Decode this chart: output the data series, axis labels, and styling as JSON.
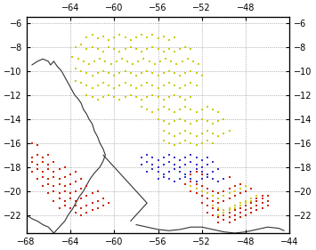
{
  "xlim": [
    -68,
    -44
  ],
  "ylim": [
    -23.5,
    -5.5
  ],
  "xticks_bottom": [
    -68,
    -64,
    -60,
    -56,
    -52,
    -48,
    -44
  ],
  "xticks_top": [
    -64,
    -60,
    -56,
    -52,
    -48
  ],
  "yticks": [
    -6,
    -8,
    -10,
    -12,
    -14,
    -16,
    -18,
    -20,
    -22
  ],
  "figsize": [
    3.55,
    2.81
  ],
  "dpi": 100,
  "yellow_dots": [
    [
      -62.5,
      -7.2
    ],
    [
      -62.0,
      -7.0
    ],
    [
      -61.5,
      -7.3
    ],
    [
      -61.0,
      -7.1
    ],
    [
      -60.5,
      -7.4
    ],
    [
      -60.0,
      -7.2
    ],
    [
      -59.5,
      -7.0
    ],
    [
      -59.0,
      -7.2
    ],
    [
      -58.5,
      -7.4
    ],
    [
      -58.0,
      -7.2
    ],
    [
      -57.5,
      -7.0
    ],
    [
      -57.0,
      -7.2
    ],
    [
      -56.5,
      -7.0
    ],
    [
      -56.0,
      -7.3
    ],
    [
      -55.5,
      -7.1
    ],
    [
      -55.0,
      -7.4
    ],
    [
      -54.5,
      -7.2
    ],
    [
      -63.5,
      -8.0
    ],
    [
      -63.0,
      -7.8
    ],
    [
      -62.5,
      -8.2
    ],
    [
      -62.0,
      -8.0
    ],
    [
      -61.5,
      -8.2
    ],
    [
      -61.0,
      -8.4
    ],
    [
      -60.5,
      -8.0
    ],
    [
      -60.0,
      -8.2
    ],
    [
      -59.5,
      -8.4
    ],
    [
      -59.0,
      -8.2
    ],
    [
      -58.5,
      -8.0
    ],
    [
      -58.0,
      -8.2
    ],
    [
      -57.5,
      -8.4
    ],
    [
      -57.0,
      -8.2
    ],
    [
      -56.5,
      -8.0
    ],
    [
      -56.0,
      -8.2
    ],
    [
      -55.5,
      -8.4
    ],
    [
      -55.0,
      -8.2
    ],
    [
      -54.5,
      -8.4
    ],
    [
      -54.0,
      -8.2
    ],
    [
      -53.5,
      -8.0
    ],
    [
      -53.0,
      -8.2
    ],
    [
      -63.8,
      -8.8
    ],
    [
      -63.3,
      -9.0
    ],
    [
      -62.8,
      -9.2
    ],
    [
      -62.3,
      -9.4
    ],
    [
      -61.8,
      -9.2
    ],
    [
      -61.3,
      -9.0
    ],
    [
      -60.8,
      -9.2
    ],
    [
      -60.3,
      -9.4
    ],
    [
      -59.8,
      -9.2
    ],
    [
      -59.3,
      -9.0
    ],
    [
      -58.8,
      -9.2
    ],
    [
      -58.3,
      -9.4
    ],
    [
      -57.8,
      -9.2
    ],
    [
      -57.3,
      -9.0
    ],
    [
      -56.8,
      -9.2
    ],
    [
      -56.3,
      -9.4
    ],
    [
      -55.8,
      -9.2
    ],
    [
      -55.3,
      -9.0
    ],
    [
      -54.8,
      -9.2
    ],
    [
      -54.3,
      -9.4
    ],
    [
      -53.8,
      -9.2
    ],
    [
      -53.3,
      -9.0
    ],
    [
      -52.8,
      -9.2
    ],
    [
      -52.3,
      -9.4
    ],
    [
      -63.5,
      -9.8
    ],
    [
      -63.0,
      -10.0
    ],
    [
      -62.5,
      -10.2
    ],
    [
      -62.0,
      -10.4
    ],
    [
      -61.5,
      -10.2
    ],
    [
      -61.0,
      -10.0
    ],
    [
      -60.5,
      -10.2
    ],
    [
      -60.0,
      -10.4
    ],
    [
      -59.5,
      -10.2
    ],
    [
      -59.0,
      -10.0
    ],
    [
      -58.5,
      -10.2
    ],
    [
      -58.0,
      -10.4
    ],
    [
      -57.5,
      -10.2
    ],
    [
      -57.0,
      -10.0
    ],
    [
      -56.5,
      -10.2
    ],
    [
      -56.0,
      -10.4
    ],
    [
      -55.5,
      -10.2
    ],
    [
      -55.0,
      -10.0
    ],
    [
      -54.5,
      -10.2
    ],
    [
      -54.0,
      -10.4
    ],
    [
      -53.5,
      -10.2
    ],
    [
      -53.0,
      -10.0
    ],
    [
      -52.5,
      -10.2
    ],
    [
      -52.0,
      -10.4
    ],
    [
      -63.5,
      -10.8
    ],
    [
      -63.0,
      -11.0
    ],
    [
      -62.5,
      -11.2
    ],
    [
      -62.0,
      -11.4
    ],
    [
      -61.5,
      -11.2
    ],
    [
      -61.0,
      -11.0
    ],
    [
      -60.5,
      -11.2
    ],
    [
      -60.0,
      -11.4
    ],
    [
      -59.5,
      -11.2
    ],
    [
      -59.0,
      -11.0
    ],
    [
      -58.5,
      -11.2
    ],
    [
      -58.0,
      -11.4
    ],
    [
      -57.5,
      -11.2
    ],
    [
      -57.0,
      -11.0
    ],
    [
      -56.5,
      -11.2
    ],
    [
      -56.0,
      -11.4
    ],
    [
      -55.5,
      -11.2
    ],
    [
      -55.0,
      -11.0
    ],
    [
      -54.5,
      -11.2
    ],
    [
      -54.0,
      -11.4
    ],
    [
      -53.5,
      -11.2
    ],
    [
      -53.0,
      -11.0
    ],
    [
      -52.5,
      -11.2
    ],
    [
      -62.5,
      -12.0
    ],
    [
      -62.0,
      -12.2
    ],
    [
      -61.5,
      -12.4
    ],
    [
      -61.0,
      -12.2
    ],
    [
      -60.5,
      -12.0
    ],
    [
      -60.0,
      -12.2
    ],
    [
      -59.5,
      -12.4
    ],
    [
      -59.0,
      -12.2
    ],
    [
      -58.5,
      -12.0
    ],
    [
      -58.0,
      -12.2
    ],
    [
      -57.5,
      -12.4
    ],
    [
      -57.0,
      -12.2
    ],
    [
      -56.5,
      -12.0
    ],
    [
      -56.0,
      -12.2
    ],
    [
      -55.5,
      -12.4
    ],
    [
      -55.0,
      -12.2
    ],
    [
      -54.5,
      -12.0
    ],
    [
      -54.0,
      -12.2
    ],
    [
      -53.5,
      -12.4
    ],
    [
      -53.0,
      -12.2
    ],
    [
      -57.5,
      -13.0
    ],
    [
      -57.0,
      -13.2
    ],
    [
      -56.5,
      -13.4
    ],
    [
      -56.0,
      -13.2
    ],
    [
      -55.5,
      -13.0
    ],
    [
      -55.0,
      -13.2
    ],
    [
      -54.5,
      -13.4
    ],
    [
      -54.0,
      -13.2
    ],
    [
      -53.5,
      -13.0
    ],
    [
      -53.0,
      -13.2
    ],
    [
      -52.5,
      -13.4
    ],
    [
      -52.0,
      -13.2
    ],
    [
      -51.5,
      -13.0
    ],
    [
      -51.0,
      -13.2
    ],
    [
      -50.5,
      -13.4
    ],
    [
      -56.0,
      -14.0
    ],
    [
      -55.5,
      -14.2
    ],
    [
      -55.0,
      -14.4
    ],
    [
      -54.5,
      -14.2
    ],
    [
      -54.0,
      -14.0
    ],
    [
      -53.5,
      -14.2
    ],
    [
      -53.0,
      -14.4
    ],
    [
      -52.5,
      -14.2
    ],
    [
      -52.0,
      -14.0
    ],
    [
      -51.5,
      -14.2
    ],
    [
      -51.0,
      -14.4
    ],
    [
      -50.5,
      -14.2
    ],
    [
      -50.0,
      -14.0
    ],
    [
      -55.5,
      -15.0
    ],
    [
      -55.0,
      -15.2
    ],
    [
      -54.5,
      -15.4
    ],
    [
      -54.0,
      -15.2
    ],
    [
      -53.5,
      -15.0
    ],
    [
      -53.0,
      -15.2
    ],
    [
      -52.5,
      -15.4
    ],
    [
      -52.0,
      -15.2
    ],
    [
      -51.5,
      -15.0
    ],
    [
      -51.0,
      -15.2
    ],
    [
      -50.5,
      -15.4
    ],
    [
      -50.0,
      -15.2
    ],
    [
      -49.5,
      -15.0
    ],
    [
      -55.5,
      -15.8
    ],
    [
      -55.0,
      -16.0
    ],
    [
      -54.5,
      -16.2
    ],
    [
      -54.0,
      -16.0
    ],
    [
      -53.5,
      -15.8
    ],
    [
      -53.0,
      -16.0
    ],
    [
      -52.5,
      -16.2
    ],
    [
      -52.0,
      -16.0
    ],
    [
      -51.5,
      -15.8
    ],
    [
      -51.0,
      -16.0
    ]
  ],
  "blue_dots": [
    [
      -57.5,
      -17.2
    ],
    [
      -57.0,
      -17.0
    ],
    [
      -56.5,
      -17.2
    ],
    [
      -56.0,
      -17.4
    ],
    [
      -55.5,
      -17.2
    ],
    [
      -55.0,
      -17.0
    ],
    [
      -54.5,
      -17.2
    ],
    [
      -54.0,
      -17.4
    ],
    [
      -53.5,
      -17.2
    ],
    [
      -53.0,
      -17.0
    ],
    [
      -52.5,
      -17.2
    ],
    [
      -52.0,
      -17.4
    ],
    [
      -51.5,
      -17.2
    ],
    [
      -57.5,
      -17.8
    ],
    [
      -57.0,
      -17.6
    ],
    [
      -56.5,
      -17.8
    ],
    [
      -56.0,
      -18.0
    ],
    [
      -55.5,
      -17.8
    ],
    [
      -55.0,
      -17.6
    ],
    [
      -54.5,
      -17.8
    ],
    [
      -54.0,
      -18.0
    ],
    [
      -53.5,
      -17.8
    ],
    [
      -53.0,
      -17.6
    ],
    [
      -52.5,
      -17.8
    ],
    [
      -52.0,
      -18.0
    ],
    [
      -51.5,
      -17.8
    ],
    [
      -51.0,
      -17.6
    ],
    [
      -57.0,
      -18.4
    ],
    [
      -56.5,
      -18.2
    ],
    [
      -56.0,
      -18.4
    ],
    [
      -55.5,
      -18.6
    ],
    [
      -55.0,
      -18.4
    ],
    [
      -54.5,
      -18.2
    ],
    [
      -54.0,
      -18.4
    ],
    [
      -53.5,
      -18.6
    ],
    [
      -53.0,
      -18.4
    ],
    [
      -52.5,
      -18.2
    ],
    [
      -52.0,
      -18.4
    ],
    [
      -51.5,
      -18.6
    ],
    [
      -51.0,
      -18.4
    ],
    [
      -50.5,
      -18.2
    ],
    [
      -56.0,
      -19.0
    ],
    [
      -55.5,
      -18.8
    ],
    [
      -55.0,
      -19.0
    ],
    [
      -54.5,
      -19.2
    ],
    [
      -54.0,
      -19.0
    ],
    [
      -53.5,
      -18.8
    ],
    [
      -53.0,
      -19.0
    ],
    [
      -52.5,
      -19.2
    ],
    [
      -52.0,
      -19.0
    ],
    [
      -51.5,
      -18.8
    ],
    [
      -51.0,
      -19.0
    ],
    [
      -50.5,
      -19.2
    ],
    [
      -50.0,
      -19.0
    ]
  ],
  "red_dots_west": [
    [
      -68.0,
      -16.2
    ],
    [
      -67.5,
      -16.0
    ],
    [
      -67.0,
      -16.2
    ],
    [
      -68.0,
      -17.0
    ],
    [
      -67.5,
      -17.2
    ],
    [
      -67.0,
      -17.0
    ],
    [
      -66.5,
      -17.2
    ],
    [
      -66.0,
      -17.0
    ],
    [
      -68.0,
      -17.8
    ],
    [
      -67.5,
      -17.6
    ],
    [
      -67.0,
      -17.8
    ],
    [
      -66.5,
      -17.6
    ],
    [
      -66.0,
      -17.8
    ],
    [
      -65.5,
      -17.6
    ],
    [
      -67.5,
      -18.4
    ],
    [
      -67.0,
      -18.2
    ],
    [
      -66.5,
      -18.4
    ],
    [
      -66.0,
      -18.2
    ],
    [
      -65.5,
      -18.4
    ],
    [
      -65.0,
      -18.2
    ],
    [
      -64.5,
      -18.0
    ],
    [
      -67.0,
      -19.0
    ],
    [
      -66.5,
      -18.8
    ],
    [
      -66.0,
      -19.0
    ],
    [
      -65.5,
      -18.8
    ],
    [
      -65.0,
      -19.0
    ],
    [
      -64.5,
      -18.8
    ],
    [
      -64.0,
      -18.6
    ],
    [
      -63.5,
      -18.4
    ],
    [
      -66.5,
      -19.6
    ],
    [
      -66.0,
      -19.4
    ],
    [
      -65.5,
      -19.6
    ],
    [
      -65.0,
      -19.4
    ],
    [
      -64.5,
      -19.6
    ],
    [
      -64.0,
      -19.4
    ],
    [
      -63.5,
      -19.2
    ],
    [
      -63.0,
      -19.0
    ],
    [
      -66.0,
      -20.2
    ],
    [
      -65.5,
      -20.0
    ],
    [
      -65.0,
      -20.2
    ],
    [
      -64.5,
      -20.0
    ],
    [
      -64.0,
      -20.2
    ],
    [
      -63.5,
      -20.0
    ],
    [
      -63.0,
      -19.8
    ],
    [
      -62.5,
      -19.6
    ],
    [
      -65.5,
      -20.8
    ],
    [
      -65.0,
      -20.6
    ],
    [
      -64.5,
      -20.8
    ],
    [
      -64.0,
      -20.6
    ],
    [
      -63.5,
      -20.8
    ],
    [
      -63.0,
      -20.6
    ],
    [
      -62.5,
      -20.4
    ],
    [
      -62.0,
      -20.2
    ],
    [
      -61.5,
      -20.0
    ],
    [
      -65.0,
      -21.4
    ],
    [
      -64.5,
      -21.2
    ],
    [
      -64.0,
      -21.4
    ],
    [
      -63.5,
      -21.2
    ],
    [
      -63.0,
      -21.4
    ],
    [
      -62.5,
      -21.2
    ],
    [
      -62.0,
      -21.0
    ],
    [
      -61.5,
      -20.8
    ],
    [
      -61.0,
      -20.6
    ],
    [
      -63.5,
      -21.8
    ],
    [
      -63.0,
      -22.0
    ],
    [
      -62.5,
      -21.8
    ],
    [
      -62.0,
      -21.6
    ],
    [
      -61.5,
      -21.4
    ],
    [
      -61.0,
      -21.2
    ],
    [
      -60.5,
      -21.0
    ]
  ],
  "red_dots_east": [
    [
      -53.5,
      -18.8
    ],
    [
      -53.0,
      -18.6
    ],
    [
      -52.5,
      -18.4
    ],
    [
      -52.0,
      -18.6
    ],
    [
      -51.5,
      -18.8
    ],
    [
      -51.0,
      -19.0
    ],
    [
      -50.5,
      -19.2
    ],
    [
      -50.0,
      -19.0
    ],
    [
      -49.5,
      -18.8
    ],
    [
      -53.5,
      -19.4
    ],
    [
      -53.0,
      -19.2
    ],
    [
      -52.5,
      -19.4
    ],
    [
      -52.0,
      -19.6
    ],
    [
      -51.5,
      -19.8
    ],
    [
      -51.0,
      -20.0
    ],
    [
      -50.5,
      -20.2
    ],
    [
      -50.0,
      -20.0
    ],
    [
      -49.5,
      -19.8
    ],
    [
      -49.0,
      -19.6
    ],
    [
      -48.5,
      -19.4
    ],
    [
      -53.0,
      -20.0
    ],
    [
      -52.5,
      -20.2
    ],
    [
      -52.0,
      -20.4
    ],
    [
      -51.5,
      -20.6
    ],
    [
      -51.0,
      -20.8
    ],
    [
      -50.5,
      -21.0
    ],
    [
      -50.0,
      -20.8
    ],
    [
      -49.5,
      -20.6
    ],
    [
      -49.0,
      -20.4
    ],
    [
      -48.5,
      -20.2
    ],
    [
      -48.0,
      -20.0
    ],
    [
      -47.5,
      -19.8
    ],
    [
      -52.0,
      -21.0
    ],
    [
      -51.5,
      -21.2
    ],
    [
      -51.0,
      -21.4
    ],
    [
      -50.5,
      -21.6
    ],
    [
      -50.0,
      -21.8
    ],
    [
      -49.5,
      -21.6
    ],
    [
      -49.0,
      -21.4
    ],
    [
      -48.5,
      -21.2
    ],
    [
      -48.0,
      -21.0
    ],
    [
      -47.5,
      -20.8
    ],
    [
      -47.0,
      -20.6
    ],
    [
      -46.5,
      -20.4
    ],
    [
      -51.5,
      -21.8
    ],
    [
      -51.0,
      -22.0
    ],
    [
      -50.5,
      -22.2
    ],
    [
      -50.0,
      -22.0
    ],
    [
      -49.5,
      -21.8
    ],
    [
      -49.0,
      -21.6
    ],
    [
      -48.5,
      -21.4
    ],
    [
      -48.0,
      -21.2
    ],
    [
      -47.5,
      -21.0
    ],
    [
      -47.0,
      -20.8
    ],
    [
      -46.5,
      -20.6
    ],
    [
      -46.0,
      -20.4
    ],
    [
      -50.5,
      -22.6
    ],
    [
      -50.0,
      -22.4
    ],
    [
      -49.5,
      -22.2
    ],
    [
      -49.0,
      -22.0
    ],
    [
      -48.5,
      -21.8
    ],
    [
      -48.0,
      -21.6
    ],
    [
      -47.5,
      -21.4
    ],
    [
      -47.0,
      -21.2
    ],
    [
      -46.5,
      -21.0
    ],
    [
      -46.0,
      -20.8
    ],
    [
      -49.5,
      -22.6
    ],
    [
      -49.0,
      -22.4
    ],
    [
      -48.5,
      -22.2
    ],
    [
      -48.0,
      -22.0
    ],
    [
      -47.5,
      -21.8
    ],
    [
      -47.0,
      -21.6
    ],
    [
      -46.5,
      -21.4
    ],
    [
      -46.0,
      -21.2
    ]
  ],
  "yellow_over_red_east": [
    [
      -53.0,
      -19.6
    ],
    [
      -52.5,
      -19.8
    ],
    [
      -52.0,
      -20.0
    ],
    [
      -51.5,
      -20.2
    ],
    [
      -51.0,
      -20.4
    ],
    [
      -50.5,
      -20.6
    ],
    [
      -50.0,
      -20.4
    ],
    [
      -49.5,
      -20.2
    ],
    [
      -49.0,
      -20.0
    ],
    [
      -48.5,
      -19.8
    ],
    [
      -48.0,
      -19.6
    ],
    [
      -51.0,
      -21.2
    ],
    [
      -50.5,
      -21.4
    ],
    [
      -50.0,
      -21.6
    ],
    [
      -49.5,
      -21.4
    ],
    [
      -49.0,
      -21.2
    ],
    [
      -48.5,
      -21.0
    ],
    [
      -48.0,
      -20.8
    ],
    [
      -47.5,
      -20.6
    ],
    [
      -47.0,
      -20.4
    ],
    [
      -50.5,
      -22.0
    ],
    [
      -50.0,
      -21.8
    ],
    [
      -49.5,
      -21.6
    ],
    [
      -49.0,
      -21.4
    ],
    [
      -48.5,
      -21.2
    ],
    [
      -48.0,
      -21.0
    ],
    [
      -47.5,
      -20.8
    ]
  ],
  "coastline_color": "#333333",
  "yellow_color": "#cccc00",
  "blue_color": "#3333cc",
  "red_color": "#cc2200",
  "dot_size": 2.5,
  "background_color": "#ffffff"
}
